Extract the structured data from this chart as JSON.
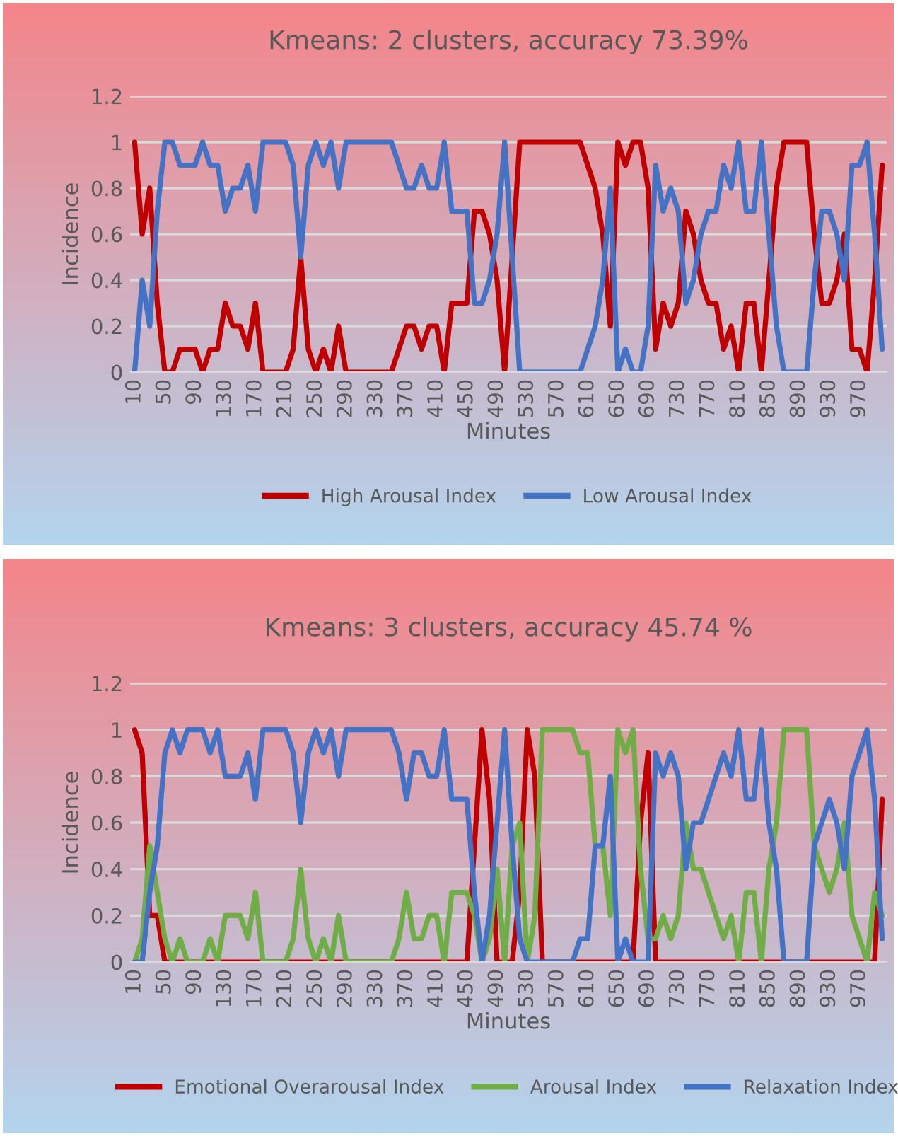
{
  "chart_data": [
    {
      "type": "line",
      "title": "Kmeans: 2 clusters, accuracy 73.39%",
      "xlabel": "Minutes",
      "ylabel": "Incidence",
      "categories": [
        "10",
        null,
        null,
        null,
        "50",
        null,
        null,
        null,
        "90",
        null,
        null,
        null,
        "130",
        null,
        null,
        null,
        "170",
        null,
        null,
        null,
        "210",
        null,
        null,
        null,
        "250",
        null,
        null,
        null,
        "290",
        null,
        null,
        null,
        "330",
        null,
        null,
        null,
        "370",
        null,
        null,
        null,
        "410",
        null,
        null,
        null,
        "450",
        null,
        null,
        null,
        "490",
        null,
        null,
        null,
        "530",
        null,
        null,
        null,
        "570",
        null,
        null,
        null,
        "610",
        null,
        null,
        null,
        "650",
        null,
        null,
        null,
        "690",
        null,
        null,
        null,
        "730",
        null,
        null,
        null,
        "770",
        null,
        null,
        null,
        "810",
        null,
        null,
        null,
        "850",
        null,
        null,
        null,
        "890",
        null,
        null,
        null,
        "930",
        null,
        null,
        null,
        "970",
        null,
        null,
        null
      ],
      "series": [
        {
          "name": "High Arousal Index",
          "color": "#c00000",
          "values": [
            1,
            0.6,
            0.8,
            0.3,
            0,
            0,
            0.1,
            0.1,
            0.1,
            0,
            0.1,
            0.1,
            0.3,
            0.2,
            0.2,
            0.1,
            0.3,
            0,
            0,
            0,
            0,
            0.1,
            0.5,
            0.1,
            0,
            0.1,
            0,
            0.2,
            0,
            0,
            0,
            0,
            0,
            0,
            0,
            0.1,
            0.2,
            0.2,
            0.1,
            0.2,
            0.2,
            0,
            0.3,
            0.3,
            0.3,
            0.7,
            0.7,
            0.6,
            0.4,
            0,
            0.5,
            1,
            1,
            1,
            1,
            1,
            1,
            1,
            1,
            1,
            0.9,
            0.8,
            0.6,
            0.2,
            1,
            0.9,
            1,
            1,
            0.8,
            0.1,
            0.3,
            0.2,
            0.3,
            0.7,
            0.6,
            0.4,
            0.3,
            0.3,
            0.1,
            0.2,
            0,
            0.3,
            0.3,
            0,
            0.4,
            0.8,
            1,
            1,
            1,
            1,
            0.6,
            0.3,
            0.3,
            0.4,
            0.6,
            0.1,
            0.1,
            0,
            0.4,
            0.9
          ]
        },
        {
          "name": "Low Arousal Index",
          "color": "#4472c4",
          "values": [
            0,
            0.4,
            0.2,
            0.7,
            1,
            1,
            0.9,
            0.9,
            0.9,
            1,
            0.9,
            0.9,
            0.7,
            0.8,
            0.8,
            0.9,
            0.7,
            1,
            1,
            1,
            1,
            0.9,
            0.5,
            0.9,
            1,
            0.9,
            1,
            0.8,
            1,
            1,
            1,
            1,
            1,
            1,
            1,
            0.9,
            0.8,
            0.8,
            0.9,
            0.8,
            0.8,
            1,
            0.7,
            0.7,
            0.7,
            0.3,
            0.3,
            0.4,
            0.6,
            1,
            0.5,
            0,
            0,
            0,
            0,
            0,
            0,
            0,
            0,
            0,
            0.1,
            0.2,
            0.4,
            0.8,
            0,
            0.1,
            0,
            0,
            0.2,
            0.9,
            0.7,
            0.8,
            0.7,
            0.3,
            0.4,
            0.6,
            0.7,
            0.7,
            0.9,
            0.8,
            1,
            0.7,
            0.7,
            1,
            0.6,
            0.2,
            0,
            0,
            0,
            0,
            0.4,
            0.7,
            0.7,
            0.6,
            0.4,
            0.9,
            0.9,
            1,
            0.6,
            0.1
          ]
        }
      ],
      "ylim": [
        0,
        1.2
      ],
      "yticks": [
        0,
        0.2,
        0.4,
        0.6,
        0.8,
        1,
        1.2
      ],
      "grid": "y",
      "legend": "bottom"
    },
    {
      "type": "line",
      "title": "Kmeans: 3 clusters, accuracy 45.74 %",
      "xlabel": "Minutes",
      "ylabel": "Incidence",
      "categories": [
        "10",
        null,
        null,
        null,
        "50",
        null,
        null,
        null,
        "90",
        null,
        null,
        null,
        "130",
        null,
        null,
        null,
        "170",
        null,
        null,
        null,
        "210",
        null,
        null,
        null,
        "250",
        null,
        null,
        null,
        "290",
        null,
        null,
        null,
        "330",
        null,
        null,
        null,
        "370",
        null,
        null,
        null,
        "410",
        null,
        null,
        null,
        "450",
        null,
        null,
        null,
        "490",
        null,
        null,
        null,
        "530",
        null,
        null,
        null,
        "570",
        null,
        null,
        null,
        "610",
        null,
        null,
        null,
        "650",
        null,
        null,
        null,
        "690",
        null,
        null,
        null,
        "730",
        null,
        null,
        null,
        "770",
        null,
        null,
        null,
        "810",
        null,
        null,
        null,
        "850",
        null,
        null,
        null,
        "890",
        null,
        null,
        null,
        "930",
        null,
        null,
        null,
        "970",
        null,
        null,
        null
      ],
      "series": [
        {
          "name": "Emotional Overarousal Index",
          "color": "#c00000",
          "values": [
            1,
            0.9,
            0.2,
            0.2,
            0,
            0,
            0,
            0,
            0,
            0,
            0,
            0,
            0,
            0,
            0,
            0,
            0,
            0,
            0,
            0,
            0,
            0,
            0,
            0,
            0,
            0,
            0,
            0,
            0,
            0,
            0,
            0,
            0,
            0,
            0,
            0,
            0,
            0,
            0,
            0,
            0,
            0,
            0,
            0,
            0,
            0.5,
            1,
            0.7,
            0,
            0,
            0,
            0.3,
            1,
            0.8,
            0,
            0,
            0,
            0,
            0,
            0,
            0,
            0,
            0,
            0,
            0,
            0,
            0,
            0.6,
            0.9,
            0,
            0,
            0,
            0,
            0,
            0,
            0,
            0,
            0,
            0,
            0,
            0,
            0,
            0,
            0,
            0,
            0,
            0,
            0,
            0,
            0,
            0,
            0,
            0,
            0,
            0,
            0,
            0,
            0,
            0,
            0.7
          ]
        },
        {
          "name": "Arousal Index",
          "color": "#70ad47",
          "values": [
            0,
            0.1,
            0.5,
            0.3,
            0.1,
            0,
            0.1,
            0,
            0,
            0,
            0.1,
            0,
            0.2,
            0.2,
            0.2,
            0.1,
            0.3,
            0,
            0,
            0,
            0,
            0.1,
            0.4,
            0.1,
            0,
            0.1,
            0,
            0.2,
            0,
            0,
            0,
            0,
            0,
            0,
            0,
            0.1,
            0.3,
            0.1,
            0.1,
            0.2,
            0.2,
            0,
            0.3,
            0.3,
            0.3,
            0.2,
            0,
            0.1,
            0.4,
            0,
            0.5,
            0.6,
            0,
            0.2,
            1,
            1,
            1,
            1,
            1,
            0.9,
            0.9,
            0.5,
            0.5,
            0.2,
            1,
            0.9,
            1,
            0.4,
            0.1,
            0.1,
            0.2,
            0.1,
            0.2,
            0.6,
            0.4,
            0.4,
            0.3,
            0.2,
            0.1,
            0.2,
            0,
            0.3,
            0.3,
            0,
            0.4,
            0.6,
            1,
            1,
            1,
            1,
            0.5,
            0.4,
            0.3,
            0.4,
            0.6,
            0.2,
            0.1,
            0,
            0.3,
            0.2
          ]
        },
        {
          "name": "Relaxation Index",
          "color": "#4472c4",
          "values": [
            0,
            0,
            0.3,
            0.5,
            0.9,
            1,
            0.9,
            1,
            1,
            1,
            0.9,
            1,
            0.8,
            0.8,
            0.8,
            0.9,
            0.7,
            1,
            1,
            1,
            1,
            0.9,
            0.6,
            0.9,
            1,
            0.9,
            1,
            0.8,
            1,
            1,
            1,
            1,
            1,
            1,
            1,
            0.9,
            0.7,
            0.9,
            0.9,
            0.8,
            0.8,
            1,
            0.7,
            0.7,
            0.7,
            0.3,
            0,
            0.2,
            0.6,
            1,
            0.5,
            0.1,
            0,
            0,
            0,
            0,
            0,
            0,
            0,
            0.1,
            0.1,
            0.5,
            0.5,
            0.8,
            0,
            0.1,
            0,
            0,
            0,
            0.9,
            0.8,
            0.9,
            0.8,
            0.4,
            0.6,
            0.6,
            0.7,
            0.8,
            0.9,
            0.8,
            1,
            0.7,
            0.7,
            1,
            0.6,
            0.4,
            0,
            0,
            0,
            0,
            0.5,
            0.6,
            0.7,
            0.6,
            0.4,
            0.8,
            0.9,
            1,
            0.7,
            0.1
          ]
        }
      ],
      "ylim": [
        0,
        1.2
      ],
      "yticks": [
        0,
        0.2,
        0.4,
        0.6,
        0.8,
        1,
        1.2
      ],
      "grid": "y",
      "legend": "bottom"
    }
  ]
}
